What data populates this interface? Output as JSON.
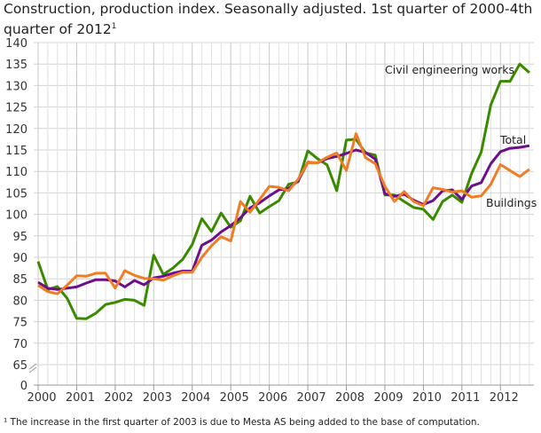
{
  "chart_data": {
    "type": "line",
    "title": "Construction, production index. Seasonally adjusted. 1st quarter of 2000-4th quarter of 2012",
    "title_footnote_marker": "1",
    "footnote": "¹ The increase in the first quarter of 2003 is due to Mesta AS being added to the base of computation.",
    "x_tick_labels": [
      "2000",
      "2001",
      "2002",
      "2003",
      "2004",
      "2005",
      "2006",
      "2007",
      "2008",
      "2009",
      "2010",
      "2011",
      "2012"
    ],
    "x_start": "2000Q1",
    "x_end": "2012Q4",
    "y_tick_labels": [
      "0",
      "65",
      "70",
      "75",
      "80",
      "85",
      "90",
      "95",
      "100",
      "105",
      "110",
      "115",
      "120",
      "125",
      "130",
      "135",
      "140"
    ],
    "ylim": [
      0,
      140
    ],
    "y_axis_break": [
      0,
      65
    ],
    "grid": true,
    "series": [
      {
        "name": "Civil engineering works",
        "color": "#3a8a00",
        "values": [
          89,
          82.5,
          83.2,
          80.5,
          75.8,
          75.7,
          77,
          79,
          79.5,
          80.2,
          80,
          78.8,
          90.5,
          86,
          87.5,
          89.5,
          93,
          99,
          96,
          100.3,
          97,
          98.5,
          104.2,
          100.3,
          101.8,
          103.2,
          107,
          107.6,
          114.8,
          113,
          111.5,
          105.5,
          117.3,
          117.5,
          114.3,
          113.8,
          104.5,
          104.5,
          103,
          101.6,
          101.2,
          98.8,
          103,
          104.5,
          102.8,
          109.5,
          114.5,
          125.5,
          131,
          131,
          135,
          133
        ]
      },
      {
        "name": "Total",
        "color": "#6d0f8a",
        "values": [
          84.2,
          82.8,
          82.5,
          82.8,
          83.1,
          84,
          84.8,
          84.8,
          84.5,
          83.1,
          84.6,
          83.6,
          85.2,
          85.6,
          86.3,
          86.8,
          86.8,
          92.8,
          94,
          95.9,
          97.4,
          99.2,
          101.5,
          102.7,
          104.3,
          105.7,
          106,
          107.8,
          112.1,
          112,
          113,
          113.5,
          114.2,
          115,
          114.4,
          112.9,
          104.8,
          104.2,
          104.7,
          103.3,
          102.3,
          103.2,
          105.5,
          105.7,
          103.5,
          106.6,
          107.4,
          111.8,
          114.6,
          115.4,
          115.6,
          116
        ]
      },
      {
        "name": "Buildings",
        "color": "#f07d26",
        "values": [
          83.5,
          82,
          81.5,
          83.5,
          85.7,
          85.6,
          86.3,
          86.3,
          82.8,
          86.9,
          85.8,
          85.1,
          85,
          84.7,
          85.7,
          86.5,
          86.5,
          90,
          92.7,
          94.8,
          93.8,
          103,
          100.5,
          103.5,
          106.5,
          106.3,
          105.5,
          108.2,
          112,
          112,
          113.3,
          114.3,
          110.2,
          118.8,
          113.2,
          111.8,
          106.5,
          103,
          105.3,
          103,
          102,
          106.2,
          105.8,
          105.2,
          105.5,
          104,
          104.3,
          107,
          111.6,
          110.2,
          108.8,
          110.5
        ]
      }
    ]
  }
}
